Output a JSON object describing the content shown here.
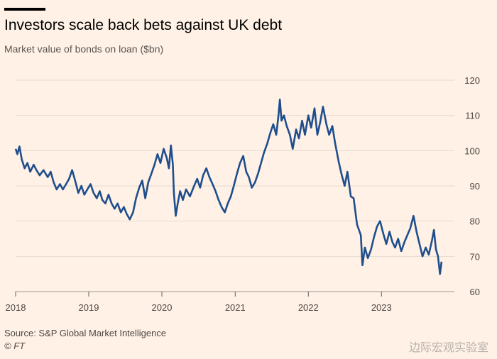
{
  "header": {
    "title": "Investors scale back bets against UK debt",
    "subtitle": "Market value of bonds on loan ($bn)"
  },
  "footer": {
    "source": "Source: S&P Global Market Intelligence",
    "copyright": "© FT",
    "watermark": "边际宏观实验室"
  },
  "colors": {
    "background": "#fff1e5",
    "line": "#1f4e8c",
    "grid": "#e6d9ce"
  },
  "chart_data": {
    "type": "line",
    "title": "Investors scale back bets against UK debt",
    "subtitle": "Market value of bonds on loan ($bn)",
    "xlabel": "",
    "ylabel": "",
    "ylim": [
      60,
      120
    ],
    "xlim": [
      "2018-01-01",
      "2023-12-31"
    ],
    "yticks": [
      "60",
      "70",
      "80",
      "90",
      "100",
      "110",
      "120"
    ],
    "xticks": [
      {
        "label": "2018",
        "date": "2018-01-01"
      },
      {
        "label": "2019",
        "date": "2019-01-01"
      },
      {
        "label": "2020",
        "date": "2020-01-01"
      },
      {
        "label": "2021",
        "date": "2021-01-01"
      },
      {
        "label": "2022",
        "date": "2022-01-01"
      },
      {
        "label": "2023",
        "date": "2023-01-01"
      }
    ],
    "grid": true,
    "axis_side": "right",
    "series": [
      {
        "points": [
          [
            "2018-01-01",
            100.5
          ],
          [
            "2018-01-10",
            99.0
          ],
          [
            "2018-01-20",
            101.2
          ],
          [
            "2018-02-01",
            97.5
          ],
          [
            "2018-02-15",
            95.0
          ],
          [
            "2018-03-01",
            96.5
          ],
          [
            "2018-03-15",
            94.0
          ],
          [
            "2018-04-01",
            96.0
          ],
          [
            "2018-04-15",
            94.5
          ],
          [
            "2018-05-01",
            93.0
          ],
          [
            "2018-05-20",
            94.5
          ],
          [
            "2018-06-10",
            92.5
          ],
          [
            "2018-06-25",
            94.0
          ],
          [
            "2018-07-10",
            91.0
          ],
          [
            "2018-07-25",
            89.0
          ],
          [
            "2018-08-10",
            90.5
          ],
          [
            "2018-08-25",
            89.0
          ],
          [
            "2018-09-10",
            90.5
          ],
          [
            "2018-09-25",
            92.0
          ],
          [
            "2018-10-10",
            94.5
          ],
          [
            "2018-10-25",
            91.5
          ],
          [
            "2018-11-10",
            88.0
          ],
          [
            "2018-11-25",
            90.0
          ],
          [
            "2018-12-10",
            87.5
          ],
          [
            "2018-12-25",
            89.0
          ],
          [
            "2019-01-10",
            90.5
          ],
          [
            "2019-01-25",
            88.0
          ],
          [
            "2019-02-10",
            86.5
          ],
          [
            "2019-02-25",
            88.5
          ],
          [
            "2019-03-10",
            86.0
          ],
          [
            "2019-03-25",
            85.0
          ],
          [
            "2019-04-10",
            87.5
          ],
          [
            "2019-04-25",
            85.0
          ],
          [
            "2019-05-10",
            83.5
          ],
          [
            "2019-05-25",
            85.0
          ],
          [
            "2019-06-10",
            82.5
          ],
          [
            "2019-06-25",
            84.0
          ],
          [
            "2019-07-10",
            82.0
          ],
          [
            "2019-07-25",
            80.5
          ],
          [
            "2019-08-10",
            82.5
          ],
          [
            "2019-08-25",
            86.5
          ],
          [
            "2019-09-10",
            89.5
          ],
          [
            "2019-09-25",
            91.5
          ],
          [
            "2019-10-10",
            86.5
          ],
          [
            "2019-10-25",
            91.0
          ],
          [
            "2019-11-10",
            93.5
          ],
          [
            "2019-11-25",
            96.0
          ],
          [
            "2019-12-10",
            99.0
          ],
          [
            "2019-12-25",
            96.5
          ],
          [
            "2020-01-10",
            100.5
          ],
          [
            "2020-01-25",
            98.0
          ],
          [
            "2020-02-05",
            95.0
          ],
          [
            "2020-02-15",
            101.5
          ],
          [
            "2020-02-25",
            96.0
          ],
          [
            "2020-03-01",
            88.0
          ],
          [
            "2020-03-10",
            81.5
          ],
          [
            "2020-03-20",
            85.0
          ],
          [
            "2020-04-01",
            88.5
          ],
          [
            "2020-04-15",
            86.0
          ],
          [
            "2020-05-01",
            89.0
          ],
          [
            "2020-05-20",
            87.0
          ],
          [
            "2020-06-10",
            90.0
          ],
          [
            "2020-06-25",
            92.0
          ],
          [
            "2020-07-10",
            89.5
          ],
          [
            "2020-07-25",
            93.0
          ],
          [
            "2020-08-10",
            95.0
          ],
          [
            "2020-08-25",
            92.5
          ],
          [
            "2020-09-10",
            90.5
          ],
          [
            "2020-09-25",
            88.5
          ],
          [
            "2020-10-10",
            86.0
          ],
          [
            "2020-10-25",
            84.0
          ],
          [
            "2020-11-10",
            82.5
          ],
          [
            "2020-11-25",
            85.0
          ],
          [
            "2020-12-10",
            87.0
          ],
          [
            "2020-12-25",
            90.0
          ],
          [
            "2021-01-10",
            93.5
          ],
          [
            "2021-01-25",
            96.5
          ],
          [
            "2021-02-10",
            98.5
          ],
          [
            "2021-02-25",
            94.0
          ],
          [
            "2021-03-10",
            92.5
          ],
          [
            "2021-03-25",
            89.5
          ],
          [
            "2021-04-10",
            91.0
          ],
          [
            "2021-04-25",
            93.5
          ],
          [
            "2021-05-10",
            96.5
          ],
          [
            "2021-05-25",
            99.5
          ],
          [
            "2021-06-10",
            102.0
          ],
          [
            "2021-06-25",
            105.0
          ],
          [
            "2021-07-10",
            107.5
          ],
          [
            "2021-07-25",
            104.5
          ],
          [
            "2021-08-05",
            110.0
          ],
          [
            "2021-08-12",
            114.5
          ],
          [
            "2021-08-20",
            108.5
          ],
          [
            "2021-09-01",
            110.0
          ],
          [
            "2021-09-15",
            107.0
          ],
          [
            "2021-10-01",
            104.5
          ],
          [
            "2021-10-15",
            100.5
          ],
          [
            "2021-11-01",
            106.0
          ],
          [
            "2021-11-15",
            103.5
          ],
          [
            "2021-12-01",
            108.5
          ],
          [
            "2021-12-15",
            104.5
          ],
          [
            "2022-01-01",
            110.0
          ],
          [
            "2022-01-15",
            106.5
          ],
          [
            "2022-02-01",
            112.0
          ],
          [
            "2022-02-15",
            104.5
          ],
          [
            "2022-03-01",
            108.0
          ],
          [
            "2022-03-15",
            112.5
          ],
          [
            "2022-04-01",
            107.5
          ],
          [
            "2022-04-15",
            104.5
          ],
          [
            "2022-05-01",
            107.0
          ],
          [
            "2022-05-15",
            102.0
          ],
          [
            "2022-06-01",
            97.0
          ],
          [
            "2022-06-15",
            93.5
          ],
          [
            "2022-07-01",
            90.0
          ],
          [
            "2022-07-15",
            94.0
          ],
          [
            "2022-08-01",
            87.0
          ],
          [
            "2022-08-15",
            86.5
          ],
          [
            "2022-09-01",
            79.0
          ],
          [
            "2022-09-20",
            76.0
          ],
          [
            "2022-09-28",
            67.5
          ],
          [
            "2022-10-10",
            72.5
          ],
          [
            "2022-10-25",
            69.5
          ],
          [
            "2022-11-10",
            72.0
          ],
          [
            "2022-11-25",
            75.5
          ],
          [
            "2022-12-10",
            78.5
          ],
          [
            "2022-12-25",
            80.0
          ],
          [
            "2023-01-10",
            76.5
          ],
          [
            "2023-01-25",
            73.5
          ],
          [
            "2023-02-10",
            77.0
          ],
          [
            "2023-02-25",
            74.0
          ],
          [
            "2023-03-10",
            72.5
          ],
          [
            "2023-03-25",
            75.0
          ],
          [
            "2023-04-10",
            71.5
          ],
          [
            "2023-04-25",
            74.0
          ],
          [
            "2023-05-10",
            76.0
          ],
          [
            "2023-05-25",
            78.0
          ],
          [
            "2023-06-10",
            81.5
          ],
          [
            "2023-06-25",
            77.0
          ],
          [
            "2023-07-10",
            73.5
          ],
          [
            "2023-07-25",
            70.0
          ],
          [
            "2023-08-10",
            72.5
          ],
          [
            "2023-08-25",
            70.5
          ],
          [
            "2023-09-10",
            74.5
          ],
          [
            "2023-09-20",
            77.5
          ],
          [
            "2023-09-30",
            72.0
          ],
          [
            "2023-10-10",
            70.0
          ],
          [
            "2023-10-20",
            65.0
          ],
          [
            "2023-10-28",
            68.5
          ]
        ]
      }
    ]
  }
}
